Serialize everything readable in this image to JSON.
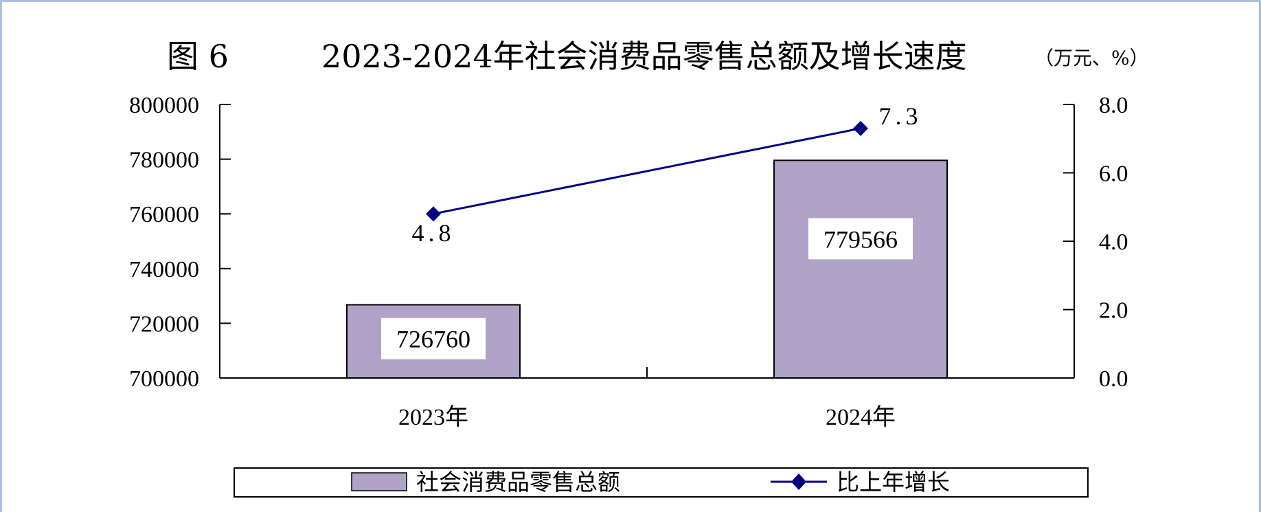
{
  "chart_data": {
    "type": "bar",
    "figure_label": "图 6",
    "title": "2023-2024年社会消费品零售总额及增长速度",
    "unit": "（万元、%）",
    "categories": [
      "2023年",
      "2024年"
    ],
    "series": [
      {
        "name": "社会消费品零售总额",
        "type": "bar",
        "axis": "left",
        "values": [
          726760,
          779566
        ],
        "labels": [
          "726760",
          "779566"
        ]
      },
      {
        "name": "比上年增长",
        "type": "line",
        "axis": "right",
        "values": [
          4.8,
          7.3
        ],
        "labels": [
          "4.8",
          "7.3"
        ]
      }
    ],
    "y_left": {
      "ylim": [
        700000,
        800000
      ],
      "ticks": [
        "700000",
        "720000",
        "740000",
        "760000",
        "780000",
        "800000"
      ]
    },
    "y_right": {
      "ylim": [
        0,
        8
      ],
      "ticks": [
        "0.0",
        "2.0",
        "4.0",
        "6.0",
        "8.0"
      ]
    },
    "grid": false,
    "legend_position": "bottom"
  },
  "colors": {
    "bar_fill": "#b1a2c8",
    "line": "#000080",
    "frame": "#a9c0de",
    "axis": "#000000"
  }
}
